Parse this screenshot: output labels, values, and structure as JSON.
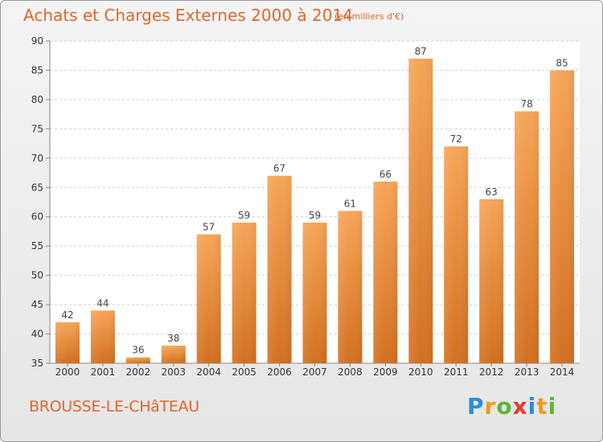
{
  "chart_data": {
    "type": "bar",
    "title": "Achats et Charges Externes 2000 à 2014",
    "unit_note": "(en milliers d'€)",
    "categories": [
      "2000",
      "2001",
      "2002",
      "2003",
      "2004",
      "2005",
      "2006",
      "2007",
      "2008",
      "2009",
      "2010",
      "2011",
      "2012",
      "2013",
      "2014"
    ],
    "values": [
      42,
      44,
      36,
      38,
      57,
      59,
      67,
      59,
      61,
      66,
      87,
      72,
      63,
      78,
      85
    ],
    "ylim": [
      35,
      90
    ],
    "yticks": [
      35,
      40,
      45,
      50,
      55,
      60,
      65,
      70,
      75,
      80,
      85,
      90
    ],
    "grid": "horizontal-dashed",
    "xlabel": "",
    "ylabel": "",
    "bar_color": "#f0913f"
  },
  "place_name": "BROUSSE-LE-CHâTEAU",
  "logo": {
    "letters": [
      "P",
      "r",
      "o",
      "x",
      "i",
      "t",
      "i"
    ],
    "colors": [
      "#2a8fd8",
      "#f39a1e",
      "#5bb733",
      "#e8392f",
      "#2a8fd8",
      "#f39a1e",
      "#5bb733"
    ]
  }
}
